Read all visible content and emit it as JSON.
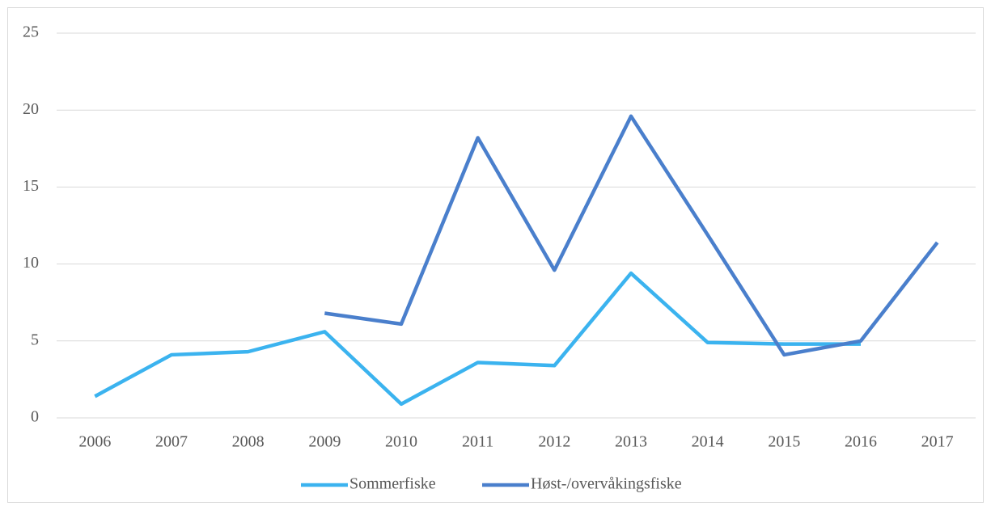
{
  "chart_data": {
    "type": "line",
    "categories": [
      "2006",
      "2007",
      "2008",
      "2009",
      "2010",
      "2011",
      "2012",
      "2013",
      "2014",
      "2015",
      "2016",
      "2017"
    ],
    "series": [
      {
        "name": "Sommerfiske",
        "color": "#3bb3ef",
        "values": [
          1.4,
          4.1,
          4.3,
          5.6,
          0.9,
          3.6,
          3.4,
          9.4,
          4.9,
          4.8,
          4.8,
          null
        ]
      },
      {
        "name": "Høst-/overvåkingsfiske",
        "color": "#4a7fcc",
        "values": [
          null,
          null,
          null,
          6.8,
          6.1,
          18.2,
          9.6,
          19.6,
          11.9,
          4.1,
          5.0,
          11.4
        ]
      }
    ],
    "ylim": [
      0,
      25
    ],
    "yticks": [
      0,
      5,
      10,
      15,
      20,
      25
    ],
    "grid": true,
    "legend": "bottom"
  }
}
